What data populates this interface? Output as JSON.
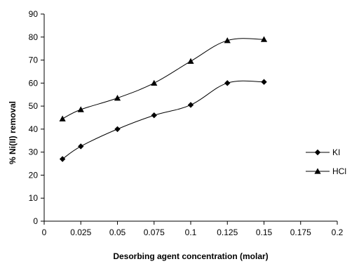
{
  "chart_data": {
    "type": "line",
    "xlabel": "Desorbing agent concentration (molar)",
    "ylabel": "% Ni(II) removal",
    "xlim": [
      0,
      0.2
    ],
    "ylim": [
      0,
      90
    ],
    "x_ticks": [
      "0",
      "0.025",
      "0.05",
      "0.075",
      "0.1",
      "0.125",
      "0.15",
      "0.175",
      "0.2"
    ],
    "y_ticks": [
      "0",
      "10",
      "20",
      "30",
      "40",
      "50",
      "60",
      "70",
      "80",
      "90"
    ],
    "x": [
      0.0125,
      0.025,
      0.05,
      0.075,
      0.1,
      0.125,
      0.15
    ],
    "series": [
      {
        "name": "KI",
        "marker": "diamond",
        "values": [
          27,
          32.5,
          40,
          46,
          50.5,
          60,
          60.5
        ]
      },
      {
        "name": "HCl",
        "marker": "triangle",
        "values": [
          44.5,
          48.5,
          53.5,
          60,
          69.5,
          78.5,
          79
        ]
      }
    ],
    "legend_position": "right",
    "grid": false,
    "colors": {
      "series": "#000000",
      "axis": "#000000"
    }
  }
}
